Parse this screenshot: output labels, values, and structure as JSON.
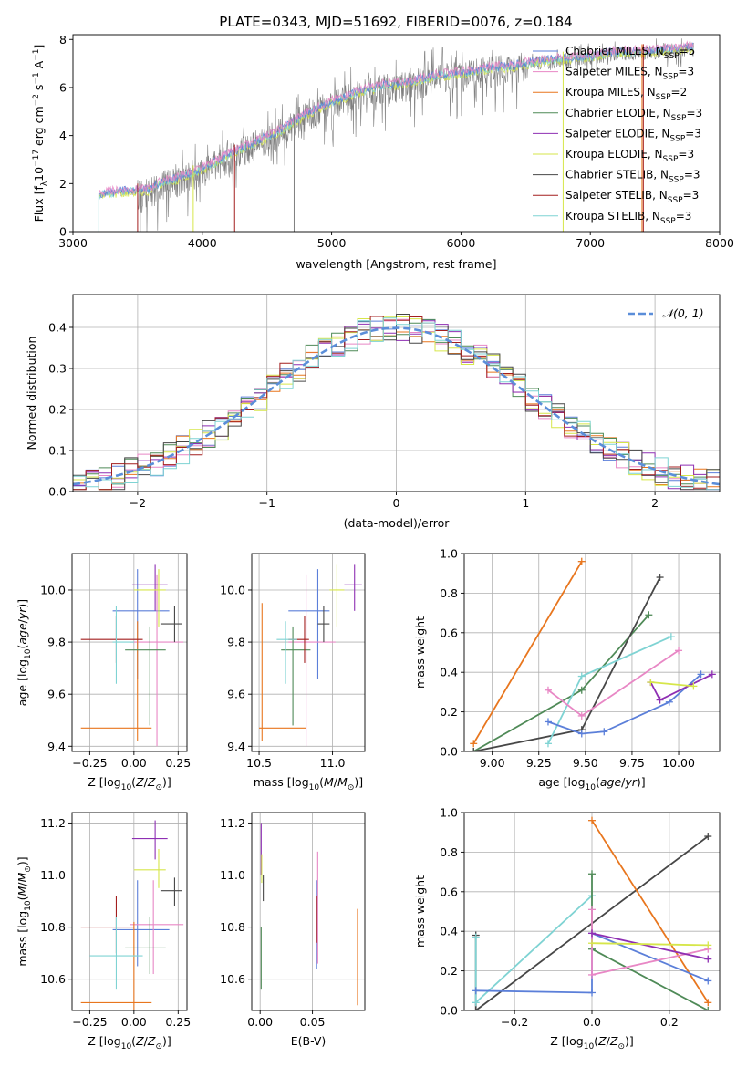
{
  "title": "PLATE=0343, MJD=51692, FIBERID=0076, z=0.184",
  "colors": {
    "blue": "#5b7fd9",
    "orange": "#e8761e",
    "green": "#4f8a57",
    "purple": "#8e2fb3",
    "yellow": "#d6e64a",
    "dark": "#474747",
    "red": "#a31f1f",
    "cyan": "#7fd3d3",
    "pink": "#e887c5",
    "grey": "#7f7f7f",
    "gaussian": "#5b8ed9",
    "grid": "#b0b0b0"
  },
  "chart_data": [
    {
      "id": "spectrum",
      "type": "line",
      "xlabel": "wavelength [Angstrom, rest frame]",
      "ylabel": "Flux [f_λ 10^-17 erg cm^-2 s^-1 A^-1]",
      "xlim": [
        3000,
        8000
      ],
      "ylim": [
        0,
        8.2
      ],
      "xticks": [
        "3000",
        "4000",
        "5000",
        "6000",
        "7000",
        "8000"
      ],
      "yticks": [
        "0",
        "2",
        "4",
        "6",
        "8"
      ],
      "grid": false,
      "legend_position": "right",
      "legend": [
        {
          "label": "Chabrier MILES, N",
          "sub": "SSP",
          "tail": "=5",
          "color": "blue"
        },
        {
          "label": "Salpeter MILES, N",
          "sub": "SSP",
          "tail": "=3",
          "color": "pink"
        },
        {
          "label": "Kroupa MILES, N",
          "sub": "SSP",
          "tail": "=2",
          "color": "orange"
        },
        {
          "label": "Chabrier ELODIE, N",
          "sub": "SSP",
          "tail": "=3",
          "color": "green"
        },
        {
          "label": "Salpeter ELODIE, N",
          "sub": "SSP",
          "tail": "=3",
          "color": "purple"
        },
        {
          "label": "Kroupa ELODIE, N",
          "sub": "SSP",
          "tail": "=3",
          "color": "yellow"
        },
        {
          "label": "Chabrier STELIB, N",
          "sub": "SSP",
          "tail": "=3",
          "color": "dark"
        },
        {
          "label": "Salpeter STELIB, N",
          "sub": "SSP",
          "tail": "=3",
          "color": "red"
        },
        {
          "label": "Kroupa STELIB, N",
          "sub": "SSP",
          "tail": "=3",
          "color": "cyan"
        }
      ],
      "continuum": [
        [
          3200,
          1.55
        ],
        [
          3400,
          1.7
        ],
        [
          3500,
          1.7
        ],
        [
          3600,
          1.75
        ],
        [
          3700,
          2.1
        ],
        [
          3800,
          2.2
        ],
        [
          4000,
          2.6
        ],
        [
          4200,
          3.2
        ],
        [
          4400,
          3.7
        ],
        [
          4600,
          4.2
        ],
        [
          4800,
          4.9
        ],
        [
          5000,
          5.4
        ],
        [
          5200,
          5.8
        ],
        [
          5400,
          6.1
        ],
        [
          5600,
          6.2
        ],
        [
          5800,
          6.5
        ],
        [
          6000,
          6.6
        ],
        [
          6200,
          6.8
        ],
        [
          6400,
          6.9
        ],
        [
          6600,
          7.1
        ],
        [
          6800,
          7.2
        ],
        [
          7000,
          7.3
        ],
        [
          7200,
          7.5
        ],
        [
          7400,
          7.5
        ],
        [
          7600,
          7.6
        ],
        [
          7800,
          7.7
        ]
      ],
      "data_range": [
        3200,
        7800
      ],
      "spikes": [
        {
          "x": 3500,
          "color": "red"
        },
        {
          "x": 3520,
          "color": "grey"
        },
        {
          "x": 3930,
          "color": "yellow"
        },
        {
          "x": 4250,
          "color": "red"
        },
        {
          "x": 4710,
          "color": "grey"
        },
        {
          "x": 6790,
          "color": "yellow"
        },
        {
          "x": 7400,
          "color": "orange"
        },
        {
          "x": 7410,
          "color": "red"
        }
      ]
    },
    {
      "id": "residual-hist",
      "type": "area",
      "xlabel": "(data-model)/error",
      "ylabel": "Normed distribution",
      "xlim": [
        -2.5,
        2.5
      ],
      "ylim": [
        0,
        0.48
      ],
      "xticks": [
        "−2",
        "−1",
        "0",
        "1",
        "2"
      ],
      "yticks": [
        "0.0",
        "0.1",
        "0.2",
        "0.3",
        "0.4"
      ],
      "grid": true,
      "legend": "𝒩(0, 1)",
      "legend_position": "top-right",
      "bins": 50,
      "series_colors": [
        "blue",
        "pink",
        "orange",
        "green",
        "purple",
        "yellow",
        "dark",
        "red",
        "cyan"
      ]
    },
    {
      "id": "age-vs-Z",
      "type": "scatter",
      "xlabel": "Z [log10(Z/Z⊙)]",
      "ylabel": "age [log10(age/yr)]",
      "xlim": [
        -0.35,
        0.3
      ],
      "ylim": [
        9.38,
        10.14
      ],
      "xticks": [
        "−0.25",
        "0.00",
        "0.25"
      ],
      "yticks": [
        "9.4",
        "9.6",
        "9.8",
        "10.0"
      ],
      "grid": true,
      "points": [
        {
          "x": 0.02,
          "y": 9.92,
          "xlo": -0.12,
          "xhi": 0.2,
          "ylo": 9.66,
          "yhi": 10.08,
          "color": "blue"
        },
        {
          "x": 0.13,
          "y": 9.8,
          "xlo": -0.02,
          "xhi": 0.28,
          "ylo": 9.4,
          "yhi": 10.06,
          "color": "pink"
        },
        {
          "x": 0.02,
          "y": 9.47,
          "xlo": -0.3,
          "xhi": 0.1,
          "ylo": 9.42,
          "yhi": 9.88,
          "color": "orange"
        },
        {
          "x": 0.09,
          "y": 9.77,
          "xlo": -0.05,
          "xhi": 0.18,
          "ylo": 9.48,
          "yhi": 9.86,
          "color": "green"
        },
        {
          "x": 0.12,
          "y": 10.02,
          "xlo": -0.01,
          "xhi": 0.19,
          "ylo": 9.92,
          "yhi": 10.1,
          "color": "purple"
        },
        {
          "x": 0.14,
          "y": 10.0,
          "xlo": 0.0,
          "xhi": 0.18,
          "ylo": 9.86,
          "yhi": 10.08,
          "color": "yellow"
        },
        {
          "x": 0.23,
          "y": 9.87,
          "xlo": 0.15,
          "xhi": 0.27,
          "ylo": 9.8,
          "yhi": 9.94,
          "color": "dark"
        },
        {
          "x": -0.1,
          "y": 9.81,
          "xlo": -0.3,
          "xhi": 0.05,
          "ylo": 9.72,
          "yhi": 9.9,
          "color": "red"
        },
        {
          "x": -0.1,
          "y": 9.8,
          "xlo": -0.12,
          "xhi": 0.0,
          "ylo": 9.64,
          "yhi": 9.94,
          "color": "cyan"
        }
      ]
    },
    {
      "id": "age-vs-mass",
      "type": "scatter",
      "xlabel": "mass [log10(M/M⊙)]",
      "ylabel": "",
      "xlim": [
        10.45,
        11.22
      ],
      "ylim": [
        9.38,
        10.14
      ],
      "xticks": [
        "10.5",
        "11.0"
      ],
      "yticks": [
        "9.4",
        "9.6",
        "9.8",
        "10.0"
      ],
      "grid": true,
      "points": [
        {
          "x": 10.9,
          "y": 9.92,
          "xlo": 10.7,
          "xhi": 10.98,
          "ylo": 9.66,
          "yhi": 10.08,
          "color": "blue"
        },
        {
          "x": 10.82,
          "y": 9.8,
          "xlo": 10.7,
          "xhi": 11.02,
          "ylo": 9.4,
          "yhi": 10.06,
          "color": "pink"
        },
        {
          "x": 10.52,
          "y": 9.47,
          "xlo": 10.5,
          "xhi": 10.82,
          "ylo": 9.42,
          "yhi": 9.95,
          "color": "orange"
        },
        {
          "x": 10.73,
          "y": 9.77,
          "xlo": 10.65,
          "xhi": 10.85,
          "ylo": 9.48,
          "yhi": 9.86,
          "color": "green"
        },
        {
          "x": 11.15,
          "y": 10.02,
          "xlo": 11.08,
          "xhi": 11.2,
          "ylo": 9.92,
          "yhi": 10.1,
          "color": "purple"
        },
        {
          "x": 11.03,
          "y": 10.0,
          "xlo": 10.98,
          "xhi": 11.08,
          "ylo": 9.86,
          "yhi": 10.1,
          "color": "yellow"
        },
        {
          "x": 10.94,
          "y": 9.87,
          "xlo": 10.9,
          "xhi": 10.98,
          "ylo": 9.8,
          "yhi": 9.94,
          "color": "dark"
        },
        {
          "x": 10.81,
          "y": 9.81,
          "xlo": 10.7,
          "xhi": 10.84,
          "ylo": 9.72,
          "yhi": 9.9,
          "color": "red"
        },
        {
          "x": 10.68,
          "y": 9.81,
          "xlo": 10.62,
          "xhi": 10.76,
          "ylo": 9.64,
          "yhi": 9.88,
          "color": "cyan"
        }
      ]
    },
    {
      "id": "weight-vs-age",
      "type": "line",
      "xlabel": "age [log10(age/yr)]",
      "ylabel": "mass weight",
      "xlim": [
        8.85,
        10.22
      ],
      "ylim": [
        0,
        1.0
      ],
      "xticks": [
        "9.00",
        "9.25",
        "9.50",
        "9.75",
        "10.00"
      ],
      "yticks": [
        "0.0",
        "0.2",
        "0.4",
        "0.6",
        "0.8",
        "1.0"
      ],
      "grid": true,
      "series": [
        {
          "color": "orange",
          "x": [
            8.9,
            9.48
          ],
          "y": [
            0.04,
            0.96
          ]
        },
        {
          "color": "green",
          "x": [
            8.9,
            9.48,
            9.84
          ],
          "y": [
            0.0,
            0.31,
            0.69
          ]
        },
        {
          "color": "dark",
          "x": [
            8.9,
            9.48,
            9.9
          ],
          "y": [
            0.0,
            0.11,
            0.88
          ]
        },
        {
          "color": "cyan",
          "x": [
            9.3,
            9.48,
            9.96
          ],
          "y": [
            0.04,
            0.38,
            0.58
          ]
        },
        {
          "color": "blue",
          "x": [
            9.3,
            9.48,
            9.6,
            9.95,
            10.12
          ],
          "y": [
            0.15,
            0.09,
            0.1,
            0.25,
            0.39
          ]
        },
        {
          "color": "pink",
          "x": [
            9.3,
            9.48,
            10.0
          ],
          "y": [
            0.31,
            0.18,
            0.51
          ]
        },
        {
          "color": "purple",
          "x": [
            9.85,
            9.9,
            10.18
          ],
          "y": [
            0.35,
            0.26,
            0.39
          ]
        },
        {
          "color": "yellow",
          "x": [
            9.85,
            10.08
          ],
          "y": [
            0.35,
            0.33
          ]
        }
      ]
    },
    {
      "id": "mass-vs-Z",
      "type": "scatter",
      "xlabel": "Z [log10(Z/Z⊙)]",
      "ylabel": "mass [log10(M/M⊙)]",
      "xlim": [
        -0.35,
        0.3
      ],
      "ylim": [
        10.48,
        11.24
      ],
      "xticks": [
        "−0.25",
        "0.00",
        "0.25"
      ],
      "yticks": [
        "10.6",
        "10.8",
        "11.0",
        "11.2"
      ],
      "grid": true,
      "points": [
        {
          "x": 0.02,
          "y": 10.79,
          "xlo": -0.12,
          "xhi": 0.2,
          "ylo": 10.65,
          "yhi": 10.98,
          "color": "blue"
        },
        {
          "x": 0.11,
          "y": 10.81,
          "xlo": -0.02,
          "xhi": 0.28,
          "ylo": 10.62,
          "yhi": 10.98,
          "color": "pink"
        },
        {
          "x": 0.0,
          "y": 10.51,
          "xlo": -0.3,
          "xhi": 0.1,
          "ylo": 10.48,
          "yhi": 10.82,
          "color": "orange"
        },
        {
          "x": 0.09,
          "y": 10.72,
          "xlo": -0.05,
          "xhi": 0.18,
          "ylo": 10.62,
          "yhi": 10.84,
          "color": "green"
        },
        {
          "x": 0.12,
          "y": 11.14,
          "xlo": -0.01,
          "xhi": 0.19,
          "ylo": 11.06,
          "yhi": 11.21,
          "color": "purple"
        },
        {
          "x": 0.14,
          "y": 11.02,
          "xlo": 0.0,
          "xhi": 0.18,
          "ylo": 10.95,
          "yhi": 11.1,
          "color": "yellow"
        },
        {
          "x": 0.23,
          "y": 10.94,
          "xlo": 0.15,
          "xhi": 0.27,
          "ylo": 10.88,
          "yhi": 10.99,
          "color": "dark"
        },
        {
          "x": -0.1,
          "y": 10.8,
          "xlo": -0.3,
          "xhi": 0.0,
          "ylo": 10.7,
          "yhi": 10.92,
          "color": "red"
        },
        {
          "x": -0.1,
          "y": 10.69,
          "xlo": -0.25,
          "xhi": 0.05,
          "ylo": 10.56,
          "yhi": 10.84,
          "color": "cyan"
        }
      ]
    },
    {
      "id": "mass-vs-ebv",
      "type": "scatter",
      "xlabel": "E(B-V)",
      "ylabel": "",
      "xlim": [
        -0.008,
        0.1
      ],
      "ylim": [
        10.48,
        11.24
      ],
      "xticks": [
        "0.00",
        "0.05"
      ],
      "yticks": [
        "10.6",
        "10.8",
        "11.0",
        "11.2"
      ],
      "grid": true,
      "points": [
        {
          "x": 0.001,
          "y": 11.1,
          "ylo": 11.0,
          "yhi": 11.2,
          "color": "purple"
        },
        {
          "x": 0.0015,
          "y": 11.02,
          "ylo": 10.97,
          "yhi": 11.08,
          "color": "yellow"
        },
        {
          "x": 0.003,
          "y": 10.94,
          "ylo": 10.9,
          "yhi": 11.0,
          "color": "dark"
        },
        {
          "x": 0.001,
          "y": 10.7,
          "ylo": 10.56,
          "yhi": 10.8,
          "color": "green"
        },
        {
          "x": 0.054,
          "y": 10.8,
          "ylo": 10.64,
          "yhi": 10.98,
          "color": "blue"
        },
        {
          "x": 0.055,
          "y": 10.88,
          "ylo": 10.66,
          "yhi": 11.09,
          "color": "pink"
        },
        {
          "x": 0.054,
          "y": 10.83,
          "ylo": 10.74,
          "yhi": 10.92,
          "color": "red"
        },
        {
          "x": 0.093,
          "y": 10.7,
          "ylo": 10.5,
          "yhi": 10.87,
          "color": "orange"
        }
      ]
    },
    {
      "id": "weight-vs-Z",
      "type": "line",
      "xlabel": "Z [log10(Z/Z⊙)]",
      "ylabel": "mass weight",
      "xlim": [
        -0.33,
        0.33
      ],
      "ylim": [
        0,
        1.0
      ],
      "xticks": [
        "−0.2",
        "0.0",
        "0.2"
      ],
      "yticks": [
        "0.0",
        "0.2",
        "0.4",
        "0.6",
        "0.8",
        "1.0"
      ],
      "grid": true,
      "series": [
        {
          "color": "dark",
          "x": [
            -0.3,
            -0.3,
            0.3
          ],
          "y": [
            0.38,
            0.0,
            0.88
          ]
        },
        {
          "color": "cyan",
          "x": [
            -0.3,
            -0.3,
            0.0
          ],
          "y": [
            0.37,
            0.04,
            0.58
          ]
        },
        {
          "color": "orange",
          "x": [
            0.0,
            0.3
          ],
          "y": [
            0.96,
            0.04
          ]
        },
        {
          "color": "green",
          "x": [
            0.0,
            0.0,
            0.3
          ],
          "y": [
            0.69,
            0.31,
            0.0
          ]
        },
        {
          "color": "blue",
          "x": [
            -0.3,
            0.0,
            0.0,
            0.3
          ],
          "y": [
            0.1,
            0.09,
            0.39,
            0.15
          ]
        },
        {
          "color": "pink",
          "x": [
            0.0,
            0.0,
            0.3
          ],
          "y": [
            0.51,
            0.18,
            0.31
          ]
        },
        {
          "color": "purple",
          "x": [
            0.0,
            0.3
          ],
          "y": [
            0.39,
            0.26
          ]
        },
        {
          "color": "yellow",
          "x": [
            0.0,
            0.3
          ],
          "y": [
            0.34,
            0.33
          ]
        }
      ]
    }
  ]
}
